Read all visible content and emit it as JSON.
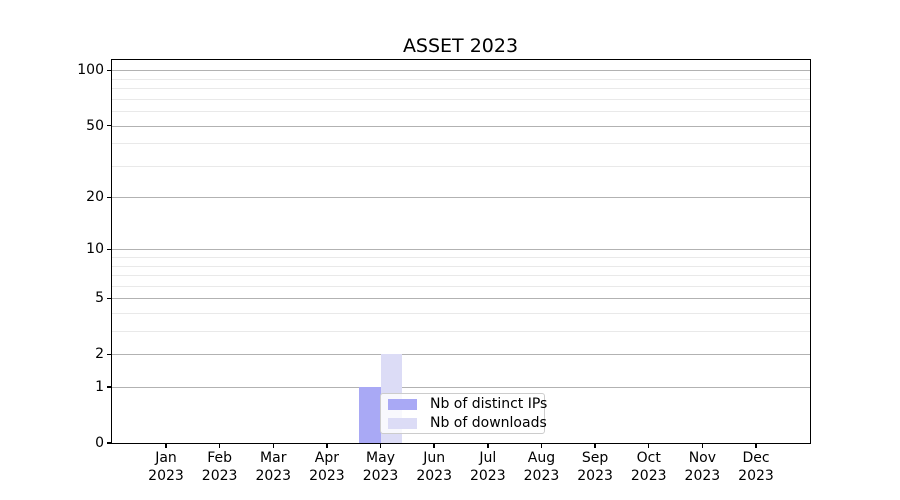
{
  "figure": {
    "title": "ASSET 2023",
    "background": "#ffffff"
  },
  "chart_data": {
    "type": "bar",
    "title": "ASSET 2023",
    "x_tick_months": [
      "Jan",
      "Feb",
      "Mar",
      "Apr",
      "May",
      "Jun",
      "Jul",
      "Aug",
      "Sep",
      "Oct",
      "Nov",
      "Dec"
    ],
    "x_tick_year": "2023",
    "series": [
      {
        "name": "Nb of distinct IPs",
        "color": "#a9a9f5",
        "values": [
          null,
          null,
          null,
          null,
          1,
          null,
          null,
          null,
          null,
          null,
          null,
          null
        ]
      },
      {
        "name": "Nb of downloads",
        "color": "#dcdcf6",
        "values": [
          null,
          null,
          null,
          null,
          2,
          null,
          null,
          null,
          null,
          null,
          null,
          null
        ]
      }
    ],
    "y_axis": {
      "scale": "log1p",
      "ylim": [
        0,
        114
      ],
      "major_ticks": [
        0,
        1,
        2,
        5,
        10,
        20,
        50,
        100
      ],
      "minor_ticks": [
        3,
        4,
        6,
        7,
        8,
        9,
        30,
        40,
        60,
        70,
        80,
        90
      ]
    },
    "grid": {
      "horizontal": true,
      "major_color": "#b2b2b2",
      "minor_color": "#e9e9e9"
    },
    "legend": {
      "position": "lower-center-right",
      "entries": [
        "Nb of distinct IPs",
        "Nb of downloads"
      ]
    },
    "bar_layout": {
      "bar_width_frac": 0.4
    }
  }
}
